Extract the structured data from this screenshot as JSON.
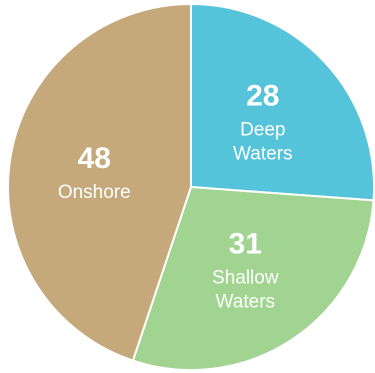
{
  "chart_data": {
    "type": "pie",
    "title": "",
    "slices": [
      {
        "value": 28,
        "label_lines": [
          "Deep",
          "Waters"
        ],
        "color": "#55C4DA"
      },
      {
        "value": 31,
        "label_lines": [
          "Shallow",
          "Waters"
        ],
        "color": "#A1D490"
      },
      {
        "value": 48,
        "label_lines": [
          "Onshore"
        ],
        "color": "#C5A97B"
      }
    ],
    "start": "12 o'clock",
    "direction": "clockwise",
    "legend": "none"
  }
}
